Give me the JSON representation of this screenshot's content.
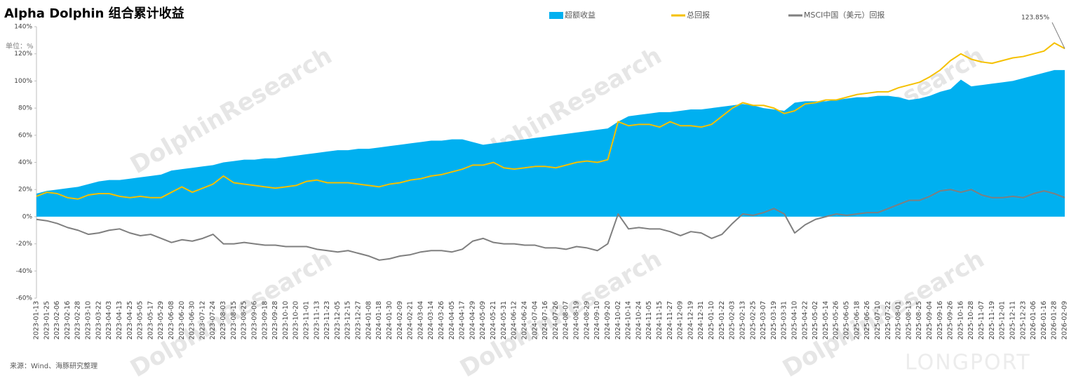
{
  "chart_data": {
    "type": "area-line",
    "title": "Alpha Dolphin 组合累计收益",
    "unit_label": "单位：%",
    "source": "来源：Wind、海豚研究整理",
    "watermark": "DolphinResearch",
    "logo": "LONGPORT",
    "annotation": "123.85%",
    "grid": false,
    "categories": [
      "2023-01-13",
      "2023-01-25",
      "2023-02-06",
      "2023-02-16",
      "2023-02-28",
      "2023-03-10",
      "2023-03-22",
      "2023-04-03",
      "2023-04-13",
      "2023-04-25",
      "2023-05-05",
      "2023-05-17",
      "2023-05-29",
      "2023-06-08",
      "2023-06-20",
      "2023-06-30",
      "2023-07-12",
      "2023-07-24",
      "2023-08-03",
      "2023-08-15",
      "2023-08-25",
      "2023-09-06",
      "2023-09-18",
      "2023-09-28",
      "2023-10-10",
      "2023-10-20",
      "2023-11-01",
      "2023-11-13",
      "2023-11-23",
      "2023-12-05",
      "2023-12-15",
      "2023-12-27",
      "2024-01-08",
      "2024-01-18",
      "2024-01-30",
      "2024-02-09",
      "2024-02-21",
      "2024-03-04",
      "2024-03-14",
      "2024-03-26",
      "2024-04-05",
      "2024-04-17",
      "2024-04-29",
      "2024-05-09",
      "2024-05-21",
      "2024-05-31",
      "2024-06-12",
      "2024-06-24",
      "2024-07-04",
      "2024-07-16",
      "2024-07-26",
      "2024-08-07",
      "2024-08-19",
      "2024-08-29",
      "2024-09-10",
      "2024-09-20",
      "2024-10-02",
      "2024-10-14",
      "2024-10-24",
      "2024-11-05",
      "2024-11-15",
      "2024-11-27",
      "2024-12-09",
      "2024-12-19",
      "2024-12-31",
      "2025-01-10",
      "2025-01-22",
      "2025-02-03",
      "2025-02-13",
      "2025-02-25",
      "2025-03-07",
      "2025-03-19",
      "2025-03-31",
      "2025-04-10",
      "2025-04-22",
      "2025-05-02",
      "2025-05-14",
      "2025-05-26",
      "2025-06-05",
      "2025-06-18",
      "2025-06-26",
      "2025-07-10",
      "2025-07-22",
      "2025-08-01",
      "2025-08-13",
      "2025-08-25",
      "2025-09-04",
      "2025-09-16",
      "2025-09-26",
      "2025-10-16",
      "2025-10-28",
      "2025-11-07",
      "2025-11-19",
      "2025-12-01",
      "2025-12-11",
      "2025-12-23",
      "2026-01-06",
      "2026-01-16",
      "2026-01-28",
      "2026-02-09"
    ],
    "series": [
      {
        "name": "超额收益",
        "kind": "area",
        "color": "#00b0f0",
        "values": [
          17,
          19,
          20,
          21,
          22,
          24,
          26,
          27,
          27,
          28,
          29,
          30,
          31,
          34,
          35,
          36,
          37,
          38,
          40,
          41,
          42,
          42,
          43,
          43,
          44,
          45,
          46,
          47,
          48,
          49,
          49,
          50,
          50,
          51,
          52,
          53,
          54,
          55,
          56,
          56,
          57,
          57,
          55,
          53,
          54,
          55,
          56,
          57,
          58,
          59,
          60,
          61,
          62,
          63,
          64,
          65,
          70,
          74,
          75,
          76,
          77,
          77,
          78,
          79,
          79,
          80,
          81,
          82,
          83,
          82,
          80,
          79,
          78,
          84,
          85,
          85,
          85,
          86,
          87,
          88,
          88,
          89,
          89,
          88,
          86,
          87,
          89,
          92,
          94,
          101,
          96,
          97,
          98,
          99,
          100,
          102,
          104,
          106,
          108,
          108
        ]
      },
      {
        "name": "总回报",
        "kind": "line",
        "color": "#f5c000",
        "values": [
          15,
          18,
          17,
          14,
          13,
          16,
          17,
          17,
          15,
          14,
          15,
          14,
          14,
          18,
          22,
          18,
          21,
          24,
          30,
          25,
          24,
          23,
          22,
          21,
          22,
          23,
          26,
          27,
          25,
          25,
          25,
          24,
          23,
          22,
          24,
          25,
          27,
          28,
          30,
          31,
          33,
          35,
          38,
          38,
          40,
          36,
          35,
          36,
          37,
          37,
          36,
          38,
          40,
          41,
          40,
          42,
          70,
          67,
          68,
          68,
          66,
          70,
          67,
          67,
          66,
          68,
          74,
          80,
          84,
          82,
          82,
          80,
          76,
          78,
          83,
          84,
          86,
          86,
          88,
          90,
          91,
          92,
          92,
          95,
          97,
          99,
          103,
          108,
          115,
          120,
          116,
          114,
          113,
          115,
          117,
          118,
          120,
          122,
          128,
          123.85
        ]
      },
      {
        "name": "MSCI中国（美元）回报",
        "kind": "line",
        "color": "#7f7f7f",
        "values": [
          -2,
          -3,
          -5,
          -8,
          -10,
          -13,
          -12,
          -10,
          -9,
          -12,
          -14,
          -13,
          -16,
          -19,
          -17,
          -18,
          -16,
          -13,
          -20,
          -20,
          -19,
          -20,
          -21,
          -21,
          -22,
          -22,
          -22,
          -24,
          -25,
          -26,
          -25,
          -27,
          -29,
          -32,
          -31,
          -29,
          -28,
          -26,
          -25,
          -25,
          -26,
          -24,
          -18,
          -16,
          -19,
          -20,
          -20,
          -21,
          -21,
          -23,
          -23,
          -24,
          -22,
          -23,
          -25,
          -20,
          2,
          -9,
          -8,
          -9,
          -9,
          -11,
          -14,
          -11,
          -12,
          -16,
          -13,
          -5,
          2,
          1,
          3,
          6,
          2,
          -12,
          -6,
          -2,
          0,
          2,
          1,
          2,
          3,
          3,
          6,
          9,
          12,
          12,
          15,
          19,
          20,
          18,
          20,
          16,
          14,
          14,
          15,
          14,
          17,
          19,
          17,
          14
        ]
      }
    ],
    "ylim": [
      -60,
      140
    ],
    "yticks": [
      {
        "value": -60,
        "label": "-60%"
      },
      {
        "value": -40,
        "label": "-40%"
      },
      {
        "value": -20,
        "label": "-20%"
      },
      {
        "value": 0,
        "label": "0%"
      },
      {
        "value": 20,
        "label": "20%"
      },
      {
        "value": 40,
        "label": "40%"
      },
      {
        "value": 60,
        "label": "60%"
      },
      {
        "value": 80,
        "label": "80%"
      },
      {
        "value": 100,
        "label": "100%"
      },
      {
        "value": 120,
        "label": "120%"
      },
      {
        "value": 140,
        "label": "140%"
      }
    ]
  }
}
